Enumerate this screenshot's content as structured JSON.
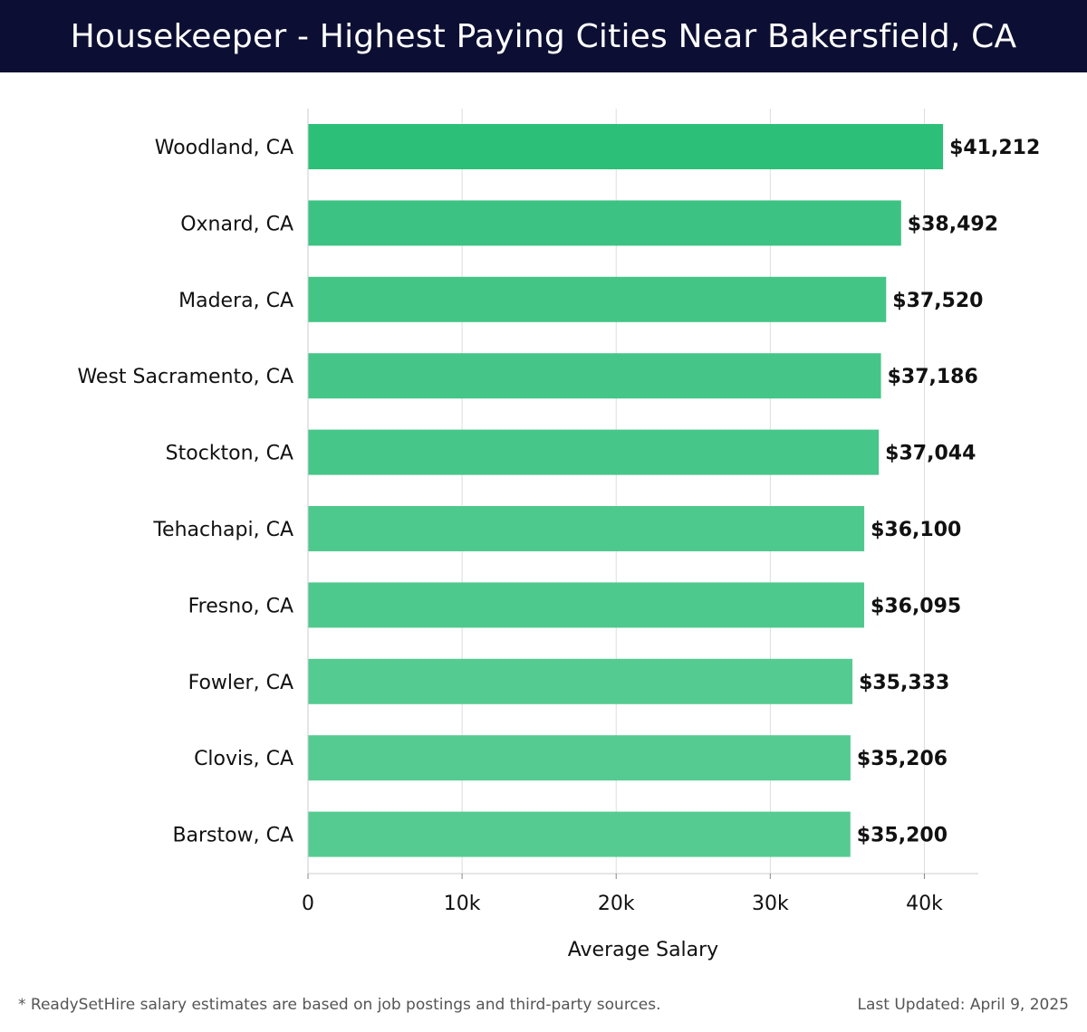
{
  "header": {
    "title": "Housekeeper - Highest Paying Cities Near Bakersfield, CA"
  },
  "chart_data": {
    "type": "bar",
    "orientation": "horizontal",
    "title": "Housekeeper - Highest Paying Cities Near Bakersfield, CA",
    "xlabel": "Average Salary",
    "ylabel": "",
    "categories": [
      "Woodland, CA",
      "Oxnard, CA",
      "Madera, CA",
      "West Sacramento, CA",
      "Stockton, CA",
      "Tehachapi, CA",
      "Fresno, CA",
      "Fowler, CA",
      "Clovis, CA",
      "Barstow, CA"
    ],
    "values": [
      41212,
      38492,
      37520,
      37186,
      37044,
      36100,
      36095,
      35333,
      35206,
      35200
    ],
    "value_labels": [
      "$41,212",
      "$38,492",
      "$37,520",
      "$37,186",
      "$37,044",
      "$36,100",
      "$36,095",
      "$35,333",
      "$35,206",
      "$35,200"
    ],
    "xlim": [
      0,
      43500
    ],
    "xticks": [
      0,
      10000,
      20000,
      30000,
      40000
    ],
    "xtick_labels": [
      "0",
      "10k",
      "20k",
      "30k",
      "40k"
    ],
    "grid": "vertical",
    "bar_colors": [
      "#2bbf78",
      "#3cc383",
      "#43c586",
      "#45c688",
      "#46c688",
      "#4ec98d",
      "#4ec98d",
      "#54cb91",
      "#55cb92",
      "#55cb92"
    ]
  },
  "footer": {
    "note": "* ReadySetHire salary estimates are based on job postings and third-party sources.",
    "updated": "Last Updated: April 9, 2025"
  }
}
